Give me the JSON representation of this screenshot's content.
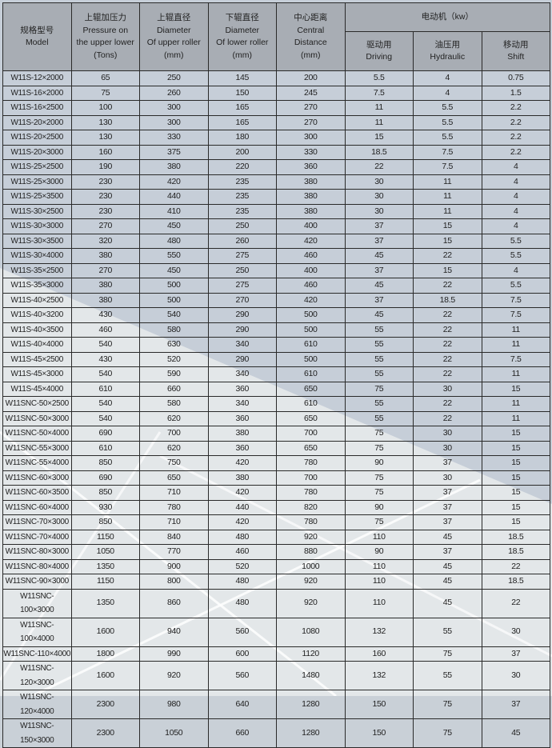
{
  "colors": {
    "header_bg": "#a8adb4",
    "row_bg": "#c6ced8",
    "row_bg_light": "#e3e7e9",
    "border": "#2a2a2a"
  },
  "headers": {
    "model": {
      "zh": "规格型号",
      "en": "Model"
    },
    "pressure": {
      "zh": "上辊加压力",
      "en1": "Pressure on",
      "en2": "the upper lower",
      "unit": "(Tons)"
    },
    "upper_dia": {
      "zh": "上辊直径",
      "en1": "Diameter",
      "en2": "Of upper roller",
      "unit": "(mm)"
    },
    "lower_dia": {
      "zh": "下辊直径",
      "en1": "Diameter",
      "en2": "Of lower roller",
      "unit": "(mm)"
    },
    "center": {
      "zh": "中心距离",
      "en1": "Central",
      "en2": "Distance",
      "unit": "(mm)"
    },
    "motor": {
      "label": "电动机（kw）"
    },
    "driving": {
      "zh": "驱动用",
      "en": "Driving"
    },
    "hydraulic": {
      "zh": "油压用",
      "en": "Hydraulic"
    },
    "shift": {
      "zh": "移动用",
      "en": "Shift"
    }
  },
  "rows": [
    [
      "W11S-12×2000",
      "65",
      "250",
      "145",
      "200",
      "5.5",
      "4",
      "0.75"
    ],
    [
      "W11S-16×2000",
      "75",
      "260",
      "150",
      "245",
      "7.5",
      "4",
      "1.5"
    ],
    [
      "W11S-16×2500",
      "100",
      "300",
      "165",
      "270",
      "11",
      "5.5",
      "2.2"
    ],
    [
      "W11S-20×2000",
      "130",
      "300",
      "165",
      "270",
      "11",
      "5.5",
      "2.2"
    ],
    [
      "W11S-20×2500",
      "130",
      "330",
      "180",
      "300",
      "15",
      "5.5",
      "2.2"
    ],
    [
      "W11S-20×3000",
      "160",
      "375",
      "200",
      "330",
      "18.5",
      "7.5",
      "2.2"
    ],
    [
      "W11S-25×2500",
      "190",
      "380",
      "220",
      "360",
      "22",
      "7.5",
      "4"
    ],
    [
      "W11S-25×3000",
      "230",
      "420",
      "235",
      "380",
      "30",
      "11",
      "4"
    ],
    [
      "W11S-25×3500",
      "230",
      "440",
      "235",
      "380",
      "30",
      "11",
      "4"
    ],
    [
      "W11S-30×2500",
      "230",
      "410",
      "235",
      "380",
      "30",
      "11",
      "4"
    ],
    [
      "W11S-30×3000",
      "270",
      "450",
      "250",
      "400",
      "37",
      "15",
      "4"
    ],
    [
      "W11S-30×3500",
      "320",
      "480",
      "260",
      "420",
      "37",
      "15",
      "5.5"
    ],
    [
      "W11S-30×4000",
      "380",
      "550",
      "275",
      "460",
      "45",
      "22",
      "5.5"
    ],
    [
      "W11S-35×2500",
      "270",
      "450",
      "250",
      "400",
      "37",
      "15",
      "4"
    ],
    [
      "W11S-35×3000",
      "380",
      "500",
      "275",
      "460",
      "45",
      "22",
      "5.5"
    ],
    [
      "W11S-40×2500",
      "380",
      "500",
      "270",
      "420",
      "37",
      "18.5",
      "7.5"
    ],
    [
      "W11S-40×3200",
      "430",
      "540",
      "290",
      "500",
      "45",
      "22",
      "7.5"
    ],
    [
      "W11S-40×3500",
      "460",
      "580",
      "290",
      "500",
      "55",
      "22",
      "11"
    ],
    [
      "W11S-40×4000",
      "540",
      "630",
      "340",
      "610",
      "55",
      "22",
      "11"
    ],
    [
      "W11S-45×2500",
      "430",
      "520",
      "290",
      "500",
      "55",
      "22",
      "7.5"
    ],
    [
      "W11S-45×3000",
      "540",
      "590",
      "340",
      "610",
      "55",
      "22",
      "11"
    ],
    [
      "W11S-45×4000",
      "610",
      "660",
      "360",
      "650",
      "75",
      "30",
      "15"
    ],
    [
      "W11SNC-50×2500",
      "540",
      "580",
      "340",
      "610",
      "55",
      "22",
      "11"
    ],
    [
      "W11SNC-50×3000",
      "540",
      "620",
      "360",
      "650",
      "55",
      "22",
      "11"
    ],
    [
      "W11SNC-50×4000",
      "690",
      "700",
      "380",
      "700",
      "75",
      "30",
      "15"
    ],
    [
      "W11SNC-55×3000",
      "610",
      "620",
      "360",
      "650",
      "75",
      "30",
      "15"
    ],
    [
      "W11SNC-55×4000",
      "850",
      "750",
      "420",
      "780",
      "90",
      "37",
      "15"
    ],
    [
      "W11SNC-60×3000",
      "690",
      "650",
      "380",
      "700",
      "75",
      "30",
      "15"
    ],
    [
      "W11SNC-60×3500",
      "850",
      "710",
      "420",
      "780",
      "75",
      "37",
      "15"
    ],
    [
      "W11SNC-60×4000",
      "930",
      "780",
      "440",
      "820",
      "90",
      "37",
      "15"
    ],
    [
      "W11SNC-70×3000",
      "850",
      "710",
      "420",
      "780",
      "75",
      "37",
      "15"
    ],
    [
      "W11SNC-70×4000",
      "1150",
      "840",
      "480",
      "920",
      "110",
      "45",
      "18.5"
    ],
    [
      "W11SNC-80×3000",
      "1050",
      "770",
      "460",
      "880",
      "90",
      "37",
      "18.5"
    ],
    [
      "W11SNC-80×4000",
      "1350",
      "900",
      "520",
      "1000",
      "110",
      "45",
      "22"
    ],
    [
      "W11SNC-90×3000",
      "1150",
      "800",
      "480",
      "920",
      "110",
      "45",
      "18.5"
    ],
    [
      "W11SNC-100×3000",
      "1350",
      "860",
      "480",
      "920",
      "110",
      "45",
      "22"
    ],
    [
      "W11SNC-100×4000",
      "1600",
      "940",
      "560",
      "1080",
      "132",
      "55",
      "30"
    ],
    [
      "W11SNC-110×4000",
      "1800",
      "990",
      "600",
      "1120",
      "160",
      "75",
      "37"
    ],
    [
      "W11SNC-120×3000",
      "1600",
      "920",
      "560",
      "1480",
      "132",
      "55",
      "30"
    ],
    [
      "W11SNC-120×4000",
      "2300",
      "980",
      "640",
      "1280",
      "150",
      "75",
      "37"
    ],
    [
      "W11SNC-150×3000",
      "2300",
      "1050",
      "660",
      "1280",
      "150",
      "75",
      "45"
    ]
  ]
}
